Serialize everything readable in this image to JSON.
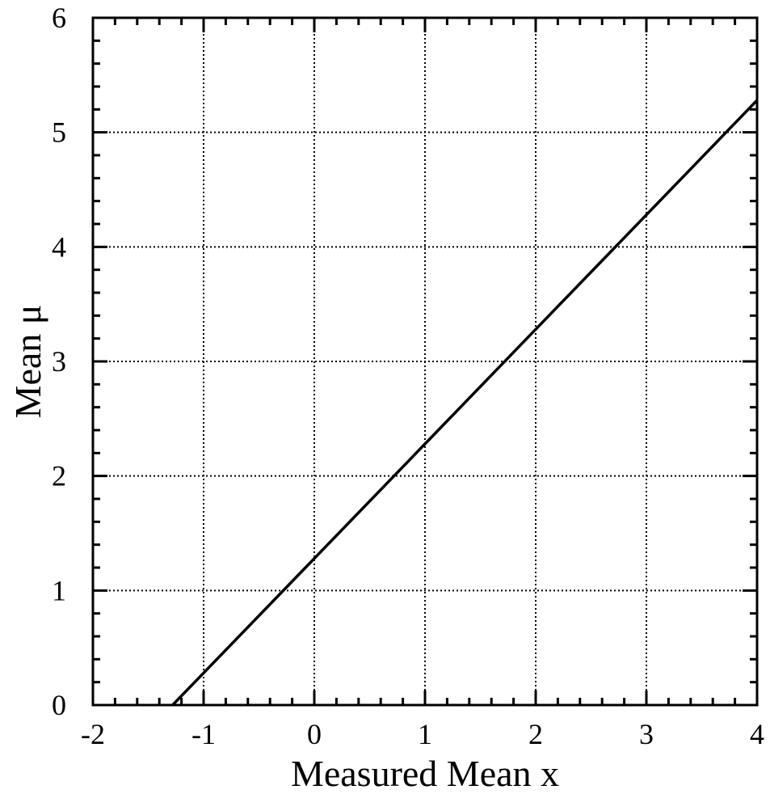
{
  "chart_data": {
    "type": "line",
    "xlabel": "Measured Mean x",
    "ylabel": "Mean μ",
    "xlim": [
      -2,
      4
    ],
    "ylim": [
      0,
      6
    ],
    "x_ticks": [
      -2,
      -1,
      0,
      1,
      2,
      3,
      4
    ],
    "y_ticks": [
      0,
      1,
      2,
      3,
      4,
      5,
      6
    ],
    "x_tick_labels": [
      "-2",
      "-1",
      "0",
      "1",
      "2",
      "3",
      "4"
    ],
    "y_tick_labels": [
      "0",
      "1",
      "2",
      "3",
      "4",
      "5",
      "6"
    ],
    "x_minor_step": 0.2,
    "y_minor_step": 0.2,
    "grid": true,
    "grid_style": "dotted",
    "series": [
      {
        "color": "#000000",
        "x": [
          -1.28,
          -1,
          0,
          1,
          2,
          3,
          4
        ],
        "y": [
          0,
          0.28,
          1.28,
          2.28,
          3.28,
          4.28,
          5.28
        ]
      }
    ]
  }
}
